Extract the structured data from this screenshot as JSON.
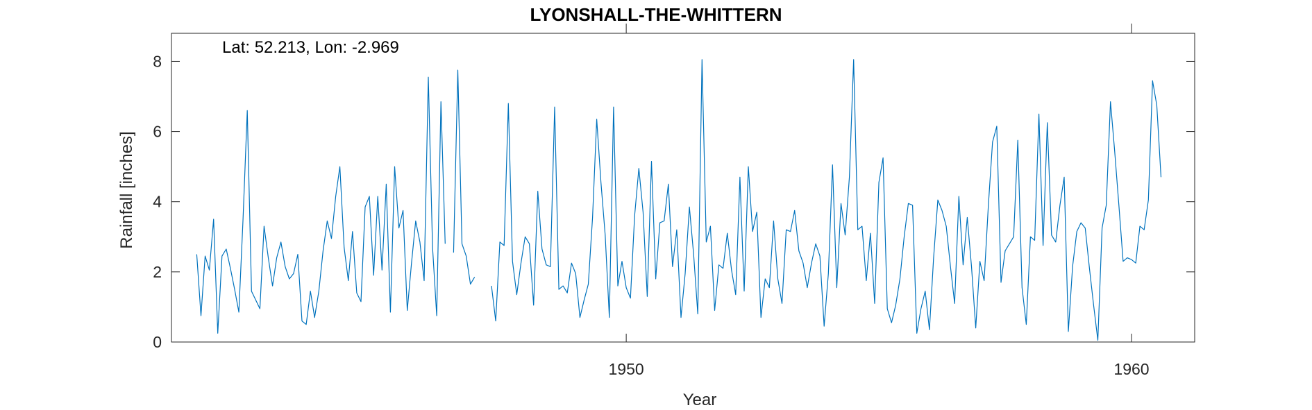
{
  "chart_data": {
    "type": "line",
    "title": "LYONSHALL-THE-WHITTERN",
    "annotation": "Lat: 52.213, Lon: -2.969",
    "xlabel": "Year",
    "ylabel": "Rainfall [inches]",
    "xlim": [
      1941,
      1961.25
    ],
    "ylim": [
      0,
      8.8
    ],
    "xticks": [
      1950,
      1960
    ],
    "yticks": [
      0,
      2,
      4,
      6,
      8
    ],
    "grid": false,
    "color": "#0072BD",
    "series": [
      {
        "start_year": 1941.5,
        "step": 0.0833333,
        "values": [
          2.5,
          0.75,
          2.45,
          2.05,
          3.5,
          0.25,
          2.45,
          2.65,
          2.1,
          1.5,
          0.85,
          3.5,
          6.6,
          1.45,
          1.2,
          0.95,
          3.3,
          2.4,
          1.6,
          2.4,
          2.85,
          2.15,
          1.8,
          1.95,
          2.5,
          0.6,
          0.5,
          1.45,
          0.7,
          1.45,
          2.6,
          3.45,
          2.95,
          4.15,
          5.0,
          2.7,
          1.75,
          3.15,
          1.4,
          1.15,
          3.85,
          4.15,
          1.9,
          4.15,
          2.05,
          4.5,
          0.85,
          5.0,
          3.25,
          3.75,
          0.9,
          2.25,
          3.45,
          2.85,
          1.75,
          7.55,
          2.7,
          0.75,
          6.85,
          2.8,
          null,
          2.55,
          7.75,
          2.8,
          2.45,
          1.65,
          1.85,
          null,
          null,
          null,
          1.6,
          0.6,
          2.85,
          2.75,
          6.8,
          2.3,
          1.35,
          2.25,
          3.0,
          2.8,
          1.05,
          4.3,
          2.65,
          2.2,
          2.15,
          6.7,
          1.5,
          1.6,
          1.4,
          2.25,
          1.95,
          0.7,
          1.2,
          1.65,
          3.55,
          6.35,
          4.55,
          3.05,
          0.7,
          6.7,
          1.6,
          2.3,
          1.55,
          1.25,
          3.6,
          4.95,
          3.7,
          1.3,
          5.15,
          1.8,
          3.4,
          3.45,
          4.5,
          2.15,
          3.2,
          0.7,
          1.95,
          3.85,
          2.5,
          0.8,
          8.05,
          2.85,
          3.3,
          0.9,
          2.2,
          2.1,
          3.1,
          2.05,
          1.35,
          4.7,
          1.45,
          5.0,
          3.15,
          3.7,
          0.7,
          1.8,
          1.55,
          3.45,
          1.8,
          1.1,
          3.2,
          3.15,
          3.75,
          2.6,
          2.25,
          1.55,
          2.25,
          2.8,
          2.45,
          0.45,
          1.95,
          5.05,
          1.55,
          3.95,
          3.05,
          4.7,
          8.05,
          3.2,
          3.3,
          1.75,
          3.1,
          1.1,
          4.55,
          5.25,
          0.95,
          0.55,
          1.05,
          1.8,
          3.0,
          3.95,
          3.9,
          0.25,
          0.95,
          1.45,
          0.35,
          2.4,
          4.05,
          3.75,
          3.3,
          2.15,
          1.1,
          4.15,
          2.2,
          3.55,
          2.15,
          0.4,
          2.3,
          1.75,
          3.9,
          5.7,
          6.15,
          1.7,
          2.6,
          2.8,
          3.0,
          5.75,
          1.55,
          0.5,
          3.0,
          2.9,
          6.5,
          2.75,
          6.25,
          3.05,
          2.85,
          3.9,
          4.7,
          0.3,
          2.15,
          3.15,
          3.4,
          3.25,
          2.1,
          1.05,
          0.05,
          3.25,
          3.9,
          6.85,
          5.45,
          3.9,
          2.3,
          2.4,
          2.35,
          2.25,
          3.3,
          3.2,
          4.05,
          7.45,
          6.75,
          4.7
        ]
      }
    ]
  }
}
